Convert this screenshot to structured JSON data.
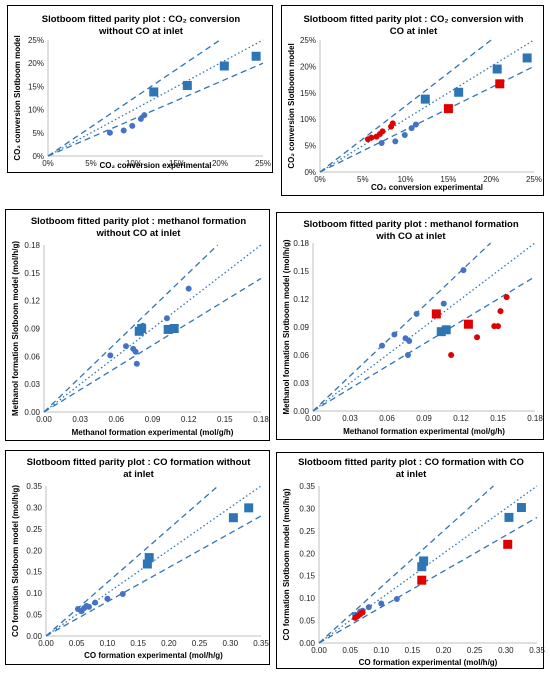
{
  "charts": [
    {
      "title": [
        "Slotboom fitted parity plot : CO₂ conversion",
        "without CO at inlet"
      ],
      "xlabel": "CO₂ conversion experimental",
      "ylabel": "CO₂ conversion Slotboom model",
      "chart_data": {
        "type": "scatter",
        "title": "Slotboom fitted parity plot : CO₂ conversion without CO at inlet",
        "xlabel": "CO₂ conversion experimental",
        "ylabel": "CO₂ conversion Slotboom model",
        "xlim": [
          0,
          25
        ],
        "ylim": [
          0,
          25
        ],
        "unit": "%",
        "ticks": [
          0,
          5,
          10,
          15,
          20,
          25
        ],
        "tick_labels": [
          "0%",
          "5%",
          "10%",
          "15%",
          "20%",
          "25%"
        ],
        "grid": false,
        "series": [
          {
            "marker": "circle",
            "color": "#4472c4",
            "points": [
              [
                7.2,
                5.0
              ],
              [
                8.8,
                5.5
              ],
              [
                9.8,
                6.5
              ],
              [
                10.8,
                8.0
              ],
              [
                11.2,
                8.8
              ]
            ]
          },
          {
            "marker": "square",
            "color": "#2e75b6",
            "points": [
              [
                12.3,
                13.8
              ],
              [
                16.2,
                15.2
              ],
              [
                20.5,
                19.4
              ],
              [
                24.2,
                21.5
              ]
            ]
          }
        ],
        "reference_lines": [
          {
            "style": "dotted",
            "slope": 1.0
          },
          {
            "style": "dashed",
            "slope": 1.25
          },
          {
            "style": "dashed",
            "slope": 0.8
          }
        ]
      }
    },
    {
      "title": [
        "Slotboom fitted parity plot : CO₂ conversion with",
        "CO at inlet"
      ],
      "xlabel": "CO₂ conversion experimental",
      "ylabel": "CO₂ conversion Slotboom model",
      "chart_data": {
        "type": "scatter",
        "title": "Slotboom fitted parity plot : CO₂ conversion with CO at inlet",
        "xlabel": "CO₂ conversion experimental",
        "ylabel": "CO₂ conversion Slotboom model",
        "xlim": [
          0,
          25
        ],
        "ylim": [
          0,
          25
        ],
        "unit": "%",
        "ticks": [
          0,
          5,
          10,
          15,
          20,
          25
        ],
        "tick_labels": [
          "0%",
          "5%",
          "10%",
          "15%",
          "20%",
          "25%"
        ],
        "grid": false,
        "series": [
          {
            "marker": "circle",
            "color": "#4472c4",
            "points": [
              [
                7.2,
                5.5
              ],
              [
                8.8,
                5.8
              ],
              [
                9.9,
                7.0
              ],
              [
                10.7,
                8.3
              ],
              [
                11.2,
                9.0
              ]
            ]
          },
          {
            "marker": "circle",
            "color": "#e00000",
            "points": [
              [
                5.6,
                6.2
              ],
              [
                6.0,
                6.5
              ],
              [
                6.6,
                6.7
              ],
              [
                7.0,
                7.2
              ],
              [
                7.3,
                7.7
              ],
              [
                8.3,
                8.6
              ],
              [
                8.5,
                9.2
              ]
            ]
          },
          {
            "marker": "square",
            "color": "#2e75b6",
            "points": [
              [
                12.3,
                13.8
              ],
              [
                16.2,
                15.1
              ],
              [
                20.7,
                19.5
              ],
              [
                24.2,
                21.6
              ]
            ]
          },
          {
            "marker": "square",
            "color": "#e00000",
            "points": [
              [
                15.0,
                12.0
              ],
              [
                21.0,
                16.7
              ]
            ]
          }
        ],
        "reference_lines": [
          {
            "style": "dotted",
            "slope": 1.0
          },
          {
            "style": "dashed",
            "slope": 1.25
          },
          {
            "style": "dashed",
            "slope": 0.8
          }
        ]
      }
    },
    {
      "title": [
        "Slotboom fitted parity plot : methanol formation",
        "without CO at inlet"
      ],
      "xlabel": "Methanol formation experimental (mol/g/h)",
      "ylabel": "Methanol formation Slotboom model (mol/h/g)",
      "chart_data": {
        "type": "scatter",
        "title": "Slotboom fitted parity plot : methanol formation without CO at inlet",
        "xlabel": "Methanol formation experimental (mol/g/h)",
        "ylabel": "Methanol formation Slotboom model (mol/h/g)",
        "xlim": [
          0,
          0.18
        ],
        "ylim": [
          0,
          0.18
        ],
        "ticks": [
          0,
          0.03,
          0.06,
          0.09,
          0.12,
          0.15,
          0.18
        ],
        "tick_labels": [
          "0.00",
          "0.03",
          "0.06",
          "0.09",
          "0.12",
          "0.15",
          "0.18"
        ],
        "grid": false,
        "series": [
          {
            "marker": "circle",
            "color": "#4472c4",
            "points": [
              [
                0.055,
                0.061
              ],
              [
                0.068,
                0.071
              ],
              [
                0.074,
                0.068
              ],
              [
                0.076,
                0.065
              ],
              [
                0.077,
                0.052
              ],
              [
                0.08,
                0.09
              ],
              [
                0.082,
                0.093
              ],
              [
                0.102,
                0.101
              ],
              [
                0.12,
                0.133
              ]
            ]
          },
          {
            "marker": "square",
            "color": "#2e75b6",
            "points": [
              [
                0.079,
                0.087
              ],
              [
                0.081,
                0.09
              ],
              [
                0.103,
                0.089
              ],
              [
                0.108,
                0.09
              ]
            ]
          }
        ],
        "reference_lines": [
          {
            "style": "dotted",
            "slope": 1.0
          },
          {
            "style": "dashed",
            "slope": 1.25
          },
          {
            "style": "dashed",
            "slope": 0.8
          }
        ]
      }
    },
    {
      "title": [
        "Slotboom fitted parity plot : methanol formation",
        "with CO at inlet"
      ],
      "xlabel": "Methanol formation experimental (mol/g/h)",
      "ylabel": "Methanol formation Slotboom model (mol/h/g)",
      "chart_data": {
        "type": "scatter",
        "title": "Slotboom fitted parity plot : methanol formation with CO at inlet",
        "xlabel": "Methanol formation experimental (mol/g/h)",
        "ylabel": "Methanol formation Slotboom model (mol/h/g)",
        "xlim": [
          0,
          0.18
        ],
        "ylim": [
          0,
          0.18
        ],
        "ticks": [
          0,
          0.03,
          0.06,
          0.09,
          0.12,
          0.15,
          0.18
        ],
        "tick_labels": [
          "0.00",
          "0.03",
          "0.06",
          "0.09",
          "0.12",
          "0.15",
          "0.18"
        ],
        "grid": false,
        "series": [
          {
            "marker": "circle",
            "color": "#4472c4",
            "points": [
              [
                0.056,
                0.07
              ],
              [
                0.066,
                0.082
              ],
              [
                0.075,
                0.078
              ],
              [
                0.077,
                0.06
              ],
              [
                0.078,
                0.075
              ],
              [
                0.084,
                0.104
              ],
              [
                0.106,
                0.115
              ],
              [
                0.122,
                0.151
              ]
            ]
          },
          {
            "marker": "circle",
            "color": "#e00000",
            "points": [
              [
                0.112,
                0.06
              ],
              [
                0.133,
                0.079
              ],
              [
                0.147,
                0.091
              ],
              [
                0.15,
                0.091
              ],
              [
                0.152,
                0.107
              ],
              [
                0.157,
                0.122
              ]
            ]
          },
          {
            "marker": "square",
            "color": "#2e75b6",
            "points": [
              [
                0.104,
                0.085
              ],
              [
                0.108,
                0.087
              ]
            ]
          },
          {
            "marker": "square",
            "color": "#e00000",
            "points": [
              [
                0.1,
                0.104
              ],
              [
                0.126,
                0.093
              ]
            ]
          }
        ],
        "reference_lines": [
          {
            "style": "dotted",
            "slope": 1.0
          },
          {
            "style": "dashed",
            "slope": 1.25
          },
          {
            "style": "dashed",
            "slope": 0.8
          }
        ]
      }
    },
    {
      "title": [
        "Slotboom fitted parity plot : CO formation without",
        "at inlet"
      ],
      "xlabel": "CO formation experimental (mol/h/g)",
      "ylabel": "CO formation Slotboom  model (mol/h/g)",
      "chart_data": {
        "type": "scatter",
        "title": "Slotboom fitted parity plot : CO formation without at inlet",
        "xlabel": "CO formation experimental (mol/h/g)",
        "ylabel": "CO formation Slotboom  model (mol/h/g)",
        "xlim": [
          0,
          0.35
        ],
        "ylim": [
          0,
          0.35
        ],
        "ticks": [
          0,
          0.05,
          0.1,
          0.15,
          0.2,
          0.25,
          0.3,
          0.35
        ],
        "tick_labels": [
          "0.00",
          "0.05",
          "0.10",
          "0.15",
          "0.20",
          "0.25",
          "0.30",
          "0.35"
        ],
        "grid": false,
        "series": [
          {
            "marker": "circle",
            "color": "#4472c4",
            "points": [
              [
                0.052,
                0.063
              ],
              [
                0.058,
                0.058
              ],
              [
                0.062,
                0.065
              ],
              [
                0.066,
                0.07
              ],
              [
                0.07,
                0.068
              ],
              [
                0.08,
                0.078
              ],
              [
                0.1,
                0.087
              ],
              [
                0.125,
                0.098
              ]
            ]
          },
          {
            "marker": "square",
            "color": "#2e75b6",
            "points": [
              [
                0.165,
                0.168
              ],
              [
                0.168,
                0.183
              ],
              [
                0.305,
                0.276
              ],
              [
                0.33,
                0.299
              ]
            ]
          }
        ],
        "reference_lines": [
          {
            "style": "dotted",
            "slope": 1.0
          },
          {
            "style": "dashed",
            "slope": 1.25
          },
          {
            "style": "dashed",
            "slope": 0.8
          }
        ]
      }
    },
    {
      "title": [
        "Slotboom fitted parity plot : CO formation with CO",
        "at inlet"
      ],
      "xlabel": "CO formation experimental (mol/h/g)",
      "ylabel": "CO formation Slotboom model (mol/h/g)",
      "chart_data": {
        "type": "scatter",
        "title": "Slotboom fitted parity plot : CO formation with CO at inlet",
        "xlabel": "CO formation experimental (mol/h/g)",
        "ylabel": "CO formation Slotboom model (mol/h/g)",
        "xlim": [
          0,
          0.35
        ],
        "ylim": [
          0,
          0.35
        ],
        "ticks": [
          0,
          0.05,
          0.1,
          0.15,
          0.2,
          0.25,
          0.3,
          0.35
        ],
        "tick_labels": [
          "0.00",
          "0.05",
          "0.10",
          "0.15",
          "0.20",
          "0.25",
          "0.30",
          "0.35"
        ],
        "grid": false,
        "series": [
          {
            "marker": "circle",
            "color": "#4472c4",
            "points": [
              [
                0.058,
                0.063
              ],
              [
                0.066,
                0.07
              ],
              [
                0.07,
                0.072
              ],
              [
                0.08,
                0.08
              ],
              [
                0.1,
                0.088
              ],
              [
                0.125,
                0.098
              ]
            ]
          },
          {
            "marker": "circle",
            "color": "#e00000",
            "points": [
              [
                0.058,
                0.056
              ],
              [
                0.062,
                0.06
              ],
              [
                0.066,
                0.064
              ],
              [
                0.07,
                0.068
              ]
            ]
          },
          {
            "marker": "square",
            "color": "#2e75b6",
            "points": [
              [
                0.165,
                0.17
              ],
              [
                0.168,
                0.183
              ],
              [
                0.305,
                0.28
              ],
              [
                0.325,
                0.302
              ]
            ]
          },
          {
            "marker": "square",
            "color": "#e00000",
            "points": [
              [
                0.165,
                0.14
              ],
              [
                0.303,
                0.22
              ]
            ]
          }
        ],
        "reference_lines": [
          {
            "style": "dotted",
            "slope": 1.0
          },
          {
            "style": "dashed",
            "slope": 1.25
          },
          {
            "style": "dashed",
            "slope": 0.8
          }
        ]
      }
    }
  ]
}
